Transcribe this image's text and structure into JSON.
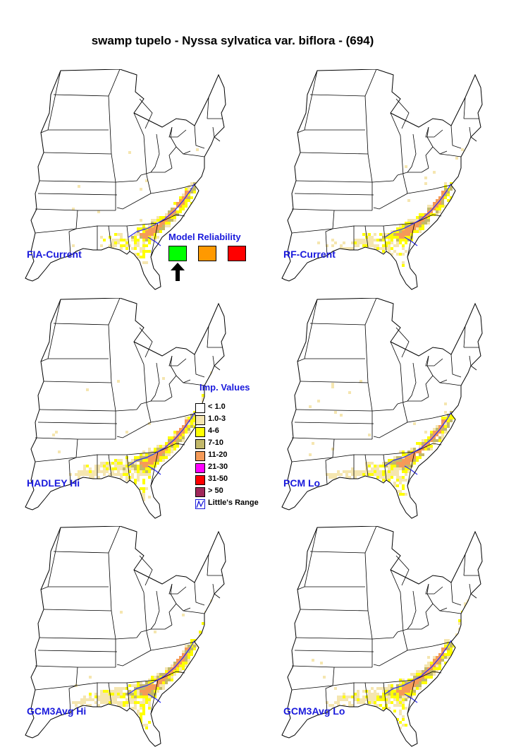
{
  "title": "swamp tupelo - Nyssa sylvatica var. biflora - (694)",
  "panels": [
    {
      "label": "FIA-Current",
      "level": 0
    },
    {
      "label": "RF-Current",
      "level": 1
    },
    {
      "label": "HADLEY Hi",
      "level": 2
    },
    {
      "label": "PCM Lo",
      "level": 1
    },
    {
      "label": "GCM3Avg Hi",
      "level": 2
    },
    {
      "label": "GCM3Avg Lo",
      "level": 2
    }
  ],
  "model_reliability": {
    "title": "Model Reliability",
    "boxes": [
      {
        "name": "high",
        "color": "#00ff00"
      },
      {
        "name": "medium",
        "color": "#ff9900"
      },
      {
        "name": "low",
        "color": "#ff0000"
      }
    ],
    "selected_index": 0
  },
  "importance_legend": {
    "title": "Imp. Values",
    "items": [
      {
        "label": "< 1.0",
        "color": "#ffffff"
      },
      {
        "label": "1.0-3",
        "color": "#f5e6b0"
      },
      {
        "label": "4-6",
        "color": "#ffff00"
      },
      {
        "label": "7-10",
        "color": "#c2b86a"
      },
      {
        "label": "11-20",
        "color": "#f59a58"
      },
      {
        "label": "21-30",
        "color": "#ff00ff"
      },
      {
        "label": "31-50",
        "color": "#ff0000"
      },
      {
        "label": "> 50",
        "color": "#a0285a"
      }
    ],
    "range_label": "Little's Range"
  }
}
